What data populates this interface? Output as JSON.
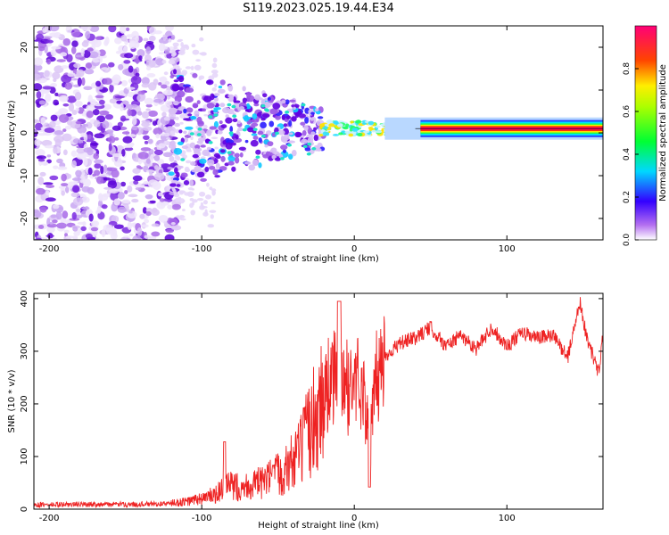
{
  "title": "S119.2023.025.19.44.E34",
  "colors": {
    "snr_line": "#ee2222",
    "spectrogram_low": "#e2d2f8",
    "spectrogram_mid": "#6a00e8",
    "axis": "#000000"
  },
  "chart_data": [
    {
      "type": "heatmap",
      "xlabel": "Height of straight line (km)",
      "ylabel": "Frequency (Hz)",
      "xlim": [
        -210,
        163
      ],
      "ylim": [
        -25,
        25
      ],
      "xticks": [
        -200,
        -100,
        0,
        100
      ],
      "yticks": [
        20,
        10,
        0,
        -10,
        -20
      ],
      "colorbar": {
        "label": "Normalized spectral amplitude",
        "range": [
          0,
          1
        ],
        "ticks": [
          "0.0",
          "0.2",
          "0.4",
          "0.6",
          "0.8"
        ],
        "colormap": "rainbow (purple→blue→cyan→green→yellow→red→magenta)"
      },
      "features": [
        {
          "x_range": [
            -210,
            -120
          ],
          "freq_range": [
            -25,
            25
          ],
          "amplitude": 0.1,
          "desc": "diffuse scattered noise"
        },
        {
          "x_range": [
            -120,
            -20
          ],
          "freq_range": [
            -12,
            12
          ],
          "amplitude": 0.2,
          "desc": "blobs converging toward 0 Hz"
        },
        {
          "x_range": [
            -20,
            60
          ],
          "freq_range": [
            -1,
            3
          ],
          "amplitude": 0.5
        },
        {
          "x_range": [
            60,
            163
          ],
          "freq_range": [
            0,
            2
          ],
          "amplitude": 1.0,
          "desc": "steady carrier line"
        }
      ]
    },
    {
      "type": "line",
      "xlabel": "Height of straight line (km)",
      "ylabel": "SNR (10 * v/v)",
      "xlim": [
        -210,
        163
      ],
      "ylim": [
        0,
        410
      ],
      "xticks": [
        -200,
        -100,
        0,
        100
      ],
      "yticks": [
        0,
        100,
        200,
        300,
        400
      ],
      "series": [
        {
          "x": [
            -210,
            -180,
            -150,
            -125,
            -110,
            -100,
            -90,
            -85,
            -75,
            -60,
            -45,
            -35,
            -25,
            -15,
            -10,
            -5,
            0,
            5,
            10,
            15,
            20,
            30,
            40,
            50,
            60,
            70,
            80,
            90,
            100,
            110,
            120,
            130,
            140,
            148,
            152,
            160,
            163
          ],
          "values": [
            8,
            9,
            9,
            10,
            14,
            20,
            28,
            45,
            42,
            50,
            75,
            110,
            180,
            250,
            240,
            230,
            240,
            250,
            120,
            255,
            290,
            315,
            325,
            345,
            310,
            330,
            305,
            345,
            310,
            335,
            325,
            330,
            290,
            395,
            330,
            260,
            330
          ]
        }
      ]
    }
  ]
}
